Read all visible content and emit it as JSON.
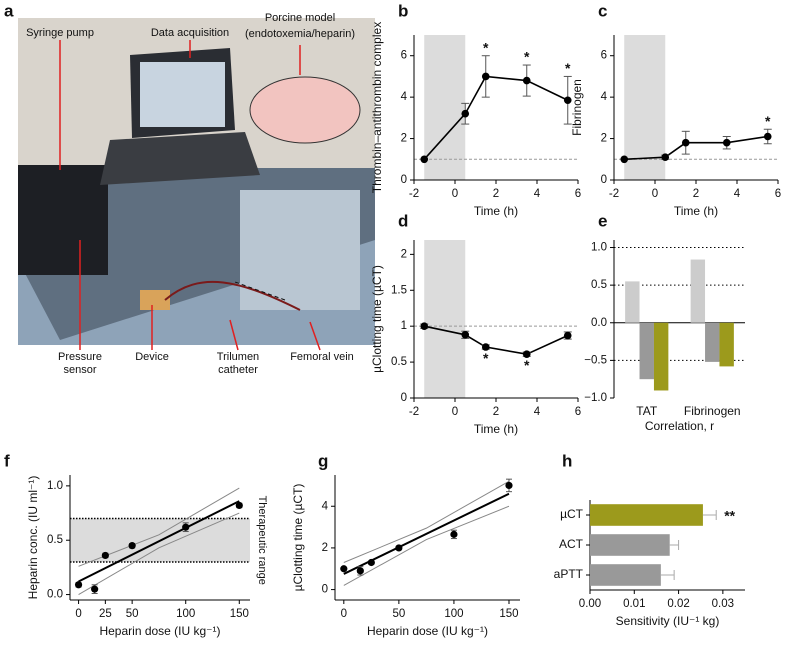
{
  "panel_labels": [
    "a",
    "b",
    "c",
    "d",
    "e",
    "f",
    "g",
    "h"
  ],
  "photo": {
    "labels": [
      "Syringe pump",
      "Data acquisition",
      "Porcine model",
      "(endotoxemia/heparin)",
      "Pressure",
      "sensor",
      "Device",
      "Trilumen",
      "catheter",
      "Femoral vein"
    ]
  },
  "chart_data": [
    {
      "type": "line",
      "ylabel": "Thrombin–antithrombin complex",
      "xlabel": "Time (h)",
      "x": [
        -1.5,
        0.5,
        1.5,
        3.5,
        5.5
      ],
      "values": [
        1,
        3.2,
        5,
        4.8,
        3.85
      ],
      "errors": [
        0,
        0.5,
        1,
        0.75,
        1.15
      ],
      "significance": [
        null,
        null,
        "*",
        "*",
        "*"
      ],
      "color": "#000000",
      "shaded": [
        -1.5,
        0.5
      ],
      "reference_line": 1,
      "xlim": [
        -2,
        6
      ],
      "xticks": [
        -2,
        0,
        2,
        4,
        6
      ],
      "ylim": [
        0,
        7
      ],
      "yticks": [
        0,
        2,
        4,
        6
      ]
    },
    {
      "type": "line",
      "ylabel": "Fibrinogen",
      "xlabel": "Time (h)",
      "x": [
        -1.5,
        0.5,
        1.5,
        3.5,
        5.5
      ],
      "values": [
        1,
        1.1,
        1.8,
        1.8,
        2.1
      ],
      "errors": [
        0,
        0.1,
        0.55,
        0.3,
        0.35
      ],
      "significance": [
        null,
        null,
        null,
        null,
        "*"
      ],
      "color": "#000000",
      "shaded": [
        -1.5,
        0.5
      ],
      "reference_line": 1,
      "xlim": [
        -2,
        6
      ],
      "xticks": [
        -2,
        0,
        2,
        4,
        6
      ],
      "ylim": [
        0,
        7
      ],
      "yticks": [
        0,
        2,
        4,
        6
      ]
    },
    {
      "type": "line",
      "ylabel": "µClotting time (µCT)",
      "xlabel": "Time (h)",
      "x": [
        -1.5,
        0.5,
        1.5,
        3.5,
        5.5
      ],
      "values": [
        1,
        0.88,
        0.71,
        0.61,
        0.87
      ],
      "errors": [
        0.03,
        0.05,
        0.03,
        0.03,
        0.05
      ],
      "significance": [
        null,
        null,
        "*",
        "*",
        null
      ],
      "color": "#000000",
      "shaded": [
        -1.5,
        0.5
      ],
      "reference_line": 1,
      "xlim": [
        -2,
        6
      ],
      "xticks": [
        -2,
        0,
        2,
        4,
        6
      ],
      "ylim": [
        0,
        2.2
      ],
      "yticks": [
        0,
        0.5,
        1,
        1.5,
        2
      ]
    },
    {
      "type": "bar",
      "xlabel": "Correlation, r",
      "categories": [
        "TAT",
        "Fibrinogen"
      ],
      "series": [
        {
          "color": "#cccccc",
          "values": [
            0.55,
            0.84
          ]
        },
        {
          "color": "#999999",
          "values": [
            -0.75,
            -0.52
          ]
        },
        {
          "color": "#9c9a1c",
          "values": [
            -0.9,
            -0.58
          ]
        }
      ],
      "hlines": [
        1,
        0.5,
        -0.5
      ],
      "ylim": [
        -1,
        1.1
      ],
      "yticks": [
        {
          "value": 1,
          "label": "1.0"
        },
        {
          "value": 0.5,
          "label": "0.5"
        },
        {
          "value": 0,
          "label": "0.0"
        },
        {
          "value": -0.5,
          "label": "−0.5"
        },
        {
          "value": -1,
          "label": "−1.0"
        }
      ]
    },
    {
      "type": "scatter",
      "ylabel": "Heparin conc. (IU ml⁻¹)",
      "xlabel": "Heparin dose (IU kg⁻¹)",
      "x": [
        0,
        15,
        25,
        50,
        100,
        150
      ],
      "values": [
        0.09,
        0.05,
        0.36,
        0.45,
        0.62,
        0.82
      ],
      "errors": [
        0.02,
        0.04,
        0.02,
        0.02,
        0.04,
        0.02
      ],
      "fit": {
        "x": [
          0,
          150
        ],
        "values": [
          0.12,
          0.86
        ]
      },
      "ci": {
        "x": [
          0,
          75,
          150
        ],
        "lower": [
          0.0,
          0.43,
          0.75
        ],
        "upper": [
          0.26,
          0.55,
          0.98
        ]
      },
      "range": [
        0.3,
        0.7
      ],
      "range_label": "Therapeutic range",
      "xlim": [
        -8,
        160
      ],
      "xticks": [
        0,
        25,
        50,
        100,
        150
      ],
      "ylim": [
        -0.05,
        1.1
      ],
      "yticks": [
        {
          "value": 0,
          "label": "0.0"
        },
        {
          "value": 0.5,
          "label": "0.5"
        },
        {
          "value": 1,
          "label": "1.0"
        }
      ]
    },
    {
      "type": "scatter",
      "ylabel": "µClotting time (µCT)",
      "xlabel": "Heparin dose (IU kg⁻¹)",
      "x": [
        0,
        15,
        25,
        50,
        100,
        150
      ],
      "values": [
        1.0,
        0.9,
        1.3,
        2.0,
        2.65,
        5.0
      ],
      "errors": [
        0.05,
        0.2,
        0.08,
        0.08,
        0.2,
        0.3
      ],
      "fit": {
        "x": [
          0,
          150
        ],
        "values": [
          0.75,
          4.6
        ]
      },
      "ci": {
        "x": [
          0,
          75,
          150
        ],
        "lower": [
          0.2,
          2.4,
          4.0
        ],
        "upper": [
          1.3,
          2.95,
          5.2
        ]
      },
      "xlim": [
        -8,
        160
      ],
      "xticks": [
        0,
        50,
        100,
        150
      ],
      "ylim": [
        -0.5,
        5.5
      ],
      "yticks": [
        0,
        2,
        4
      ]
    },
    {
      "type": "barh",
      "xlabel": "Sensitivity (IU⁻¹ kg)",
      "categories": [
        "µCT",
        "ACT",
        "aPTT"
      ],
      "values": [
        0.0255,
        0.018,
        0.016
      ],
      "errors": [
        0.003,
        0.002,
        0.003
      ],
      "colors": [
        "#9c9a1c",
        "#999999",
        "#999999"
      ],
      "value_annotations": [
        "**",
        null,
        null
      ],
      "xlim": [
        0,
        0.035
      ],
      "xticks": [
        {
          "value": 0,
          "label": "0.00"
        },
        {
          "value": 0.01,
          "label": "0.01"
        },
        {
          "value": 0.02,
          "label": "0.02"
        },
        {
          "value": 0.03,
          "label": "0.03"
        }
      ]
    }
  ]
}
